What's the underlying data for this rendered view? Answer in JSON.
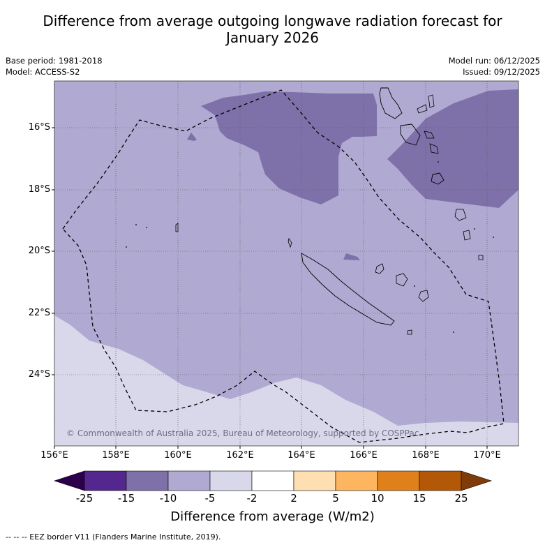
{
  "title_line1": "Difference from average outgoing longwave radiation forecast for",
  "title_line2": "January 2026",
  "base_period": "Base period: 1981-2018",
  "model": "Model: ACCESS-S2",
  "model_run": "Model run: 06/12/2025",
  "issued": "Issued: 09/12/2025",
  "lat_labels": [
    "16°S",
    "18°S",
    "20°S",
    "22°S",
    "24°S"
  ],
  "lon_labels": [
    "156°E",
    "158°E",
    "160°E",
    "162°E",
    "164°E",
    "166°E",
    "168°E",
    "170°E"
  ],
  "copyright": "© Commonwealth of Australia 2025, Bureau of Meteorology, supported by COSPPac",
  "colorbar": {
    "labels": [
      "-25",
      "-15",
      "-10",
      "-5",
      "-2",
      "2",
      "5",
      "10",
      "15",
      "25"
    ],
    "colors": [
      "#54278f",
      "#7e71a9",
      "#b0a9d1",
      "#d9d8ea",
      "#ffffff",
      "#fddfb2",
      "#fdb55f",
      "#e0801a",
      "#b35806"
    ],
    "under_color": "#2d004b",
    "over_color": "#7f3b08",
    "title": "Difference from average (W/m2)"
  },
  "footnote": "--  --  -- EEZ border V11 (Flanders Marine Institute, 2019).",
  "colors": {
    "strong_negative": "#7e71a9",
    "moderate_negative": "#b0a9d1",
    "weak_negative": "#d9d8ea"
  }
}
